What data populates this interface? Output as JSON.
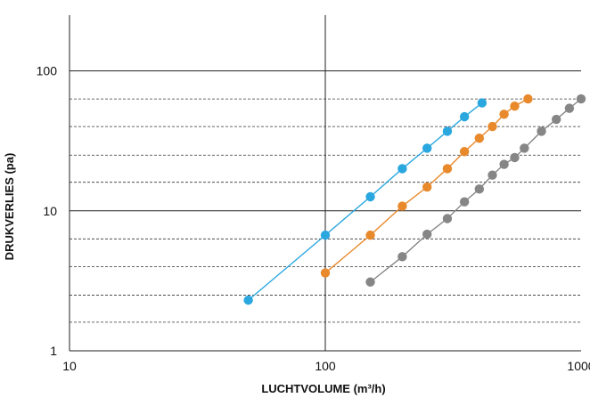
{
  "chart_data": {
    "type": "scatter",
    "title": "",
    "xlabel": "LUCHTVOLUME (m³/h)",
    "ylabel": "DRUKVERLIES (pa)",
    "x_scale": "log",
    "y_scale": "log",
    "xlim": [
      10,
      1000
    ],
    "ylim": [
      1,
      250
    ],
    "x_ticks": [
      "10",
      "100",
      "1000"
    ],
    "y_ticks": [
      "1",
      "10",
      "100"
    ],
    "grid": "solid at decades, dashed at minor levels",
    "legend": "none",
    "series": [
      {
        "color": "#2AA7DF",
        "x": [
          50,
          100,
          150,
          200,
          250,
          300,
          350,
          410
        ],
        "y": [
          2.3,
          6.7,
          12.6,
          20,
          28,
          37,
          47,
          59
        ]
      },
      {
        "color": "#E8892C",
        "x": [
          100,
          150,
          200,
          250,
          300,
          350,
          400,
          450,
          500,
          550,
          620
        ],
        "y": [
          3.6,
          6.7,
          10.8,
          14.8,
          20,
          26.5,
          33,
          40,
          49,
          56,
          63
        ]
      },
      {
        "color": "#868686",
        "x": [
          150,
          200,
          250,
          300,
          350,
          400,
          450,
          500,
          550,
          600,
          700,
          800,
          900,
          1000
        ],
        "y": [
          3.1,
          4.7,
          6.8,
          8.8,
          11.6,
          14.3,
          18,
          21.5,
          24,
          28,
          37,
          45,
          54,
          63
        ]
      }
    ]
  }
}
